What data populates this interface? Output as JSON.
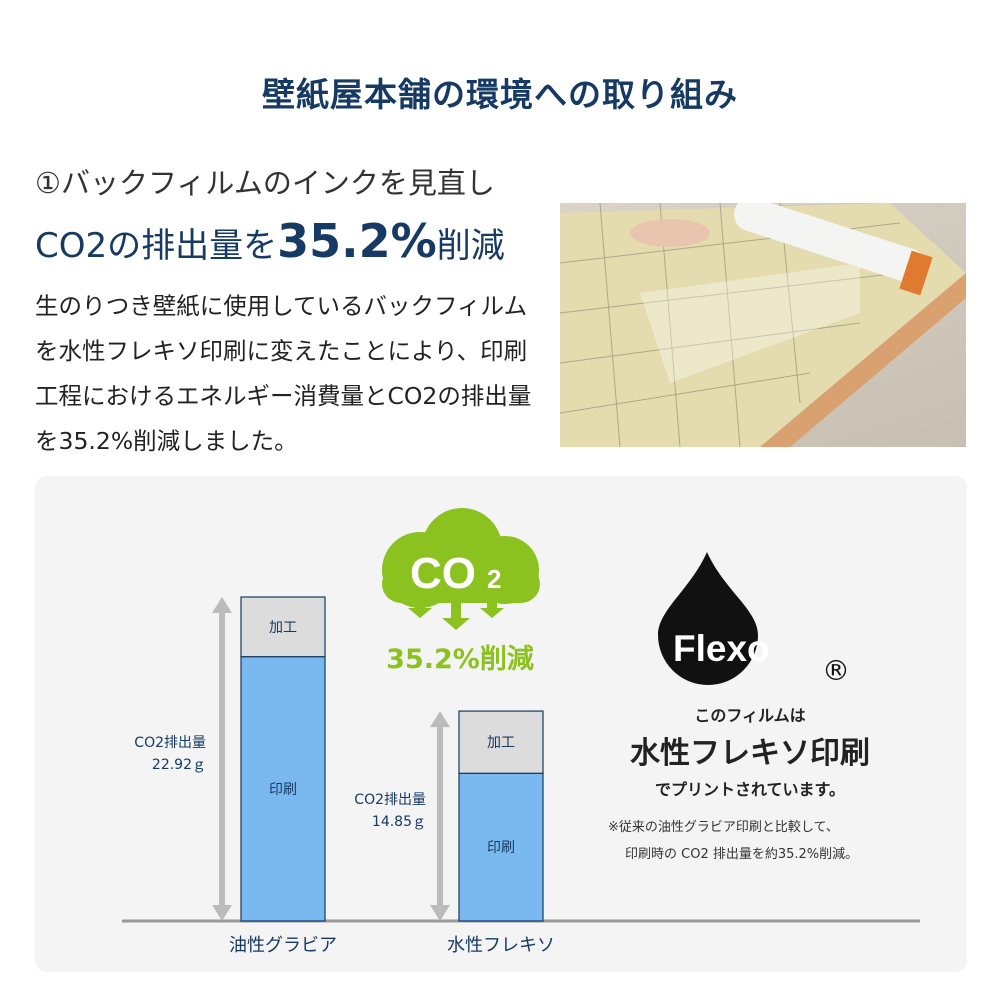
{
  "title": "壁紙屋本舗の環境への取り組み",
  "heading": {
    "line1": "①バックフィルムのインクを見直し",
    "line2_pre": "CO2の排出量を",
    "line2_num": "35.2%",
    "line2_post": "削減"
  },
  "body": "生のりつき壁紙に使用しているバックフィルムを水性フレキソ印刷に変えたことにより、印刷工程におけるエネルギー消費量とCO2の排出量を35.2%削減しました。",
  "cloud": {
    "label": "CO",
    "sub": "2",
    "reduction": "35.2%削減",
    "color": "#8cc21f"
  },
  "flexo": {
    "logo": "Flexo",
    "registered": "®",
    "line1": "このフィルムは",
    "line2": "水性フレキソ印刷",
    "line3": "でプリントされています。",
    "note1": "※従来の油性グラビア印刷と比較して、",
    "note2": "印刷時の CO2 排出量を約35.2%削減。"
  },
  "chart_data": {
    "type": "bar",
    "stacked": true,
    "categories": [
      "油性グラビア",
      "水性フレキソ"
    ],
    "series": [
      {
        "name": "印刷",
        "values": [
          18.7,
          10.45
        ],
        "color": "#7ab8f0"
      },
      {
        "name": "加工",
        "values": [
          4.22,
          4.4
        ],
        "color": "#dcdcdc"
      }
    ],
    "totals": [
      22.92,
      14.85
    ],
    "total_labels": [
      {
        "line1": "CO2排出量",
        "line2": "22.92ｇ"
      },
      {
        "line1": "CO2排出量",
        "line2": "14.85ｇ"
      }
    ],
    "ylim": [
      0,
      22.92
    ],
    "grid": false
  }
}
